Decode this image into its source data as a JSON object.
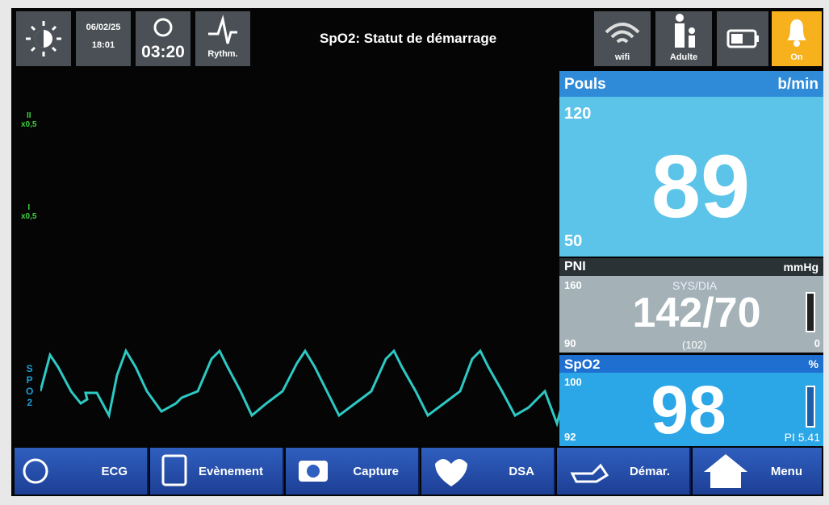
{
  "status_bar": {
    "date": "06/02/25",
    "time": "18:01",
    "timer": "03:20",
    "rhythm": "Rythm.",
    "message": "SpO2: Statut de démarrage",
    "wifi": "wifi",
    "patient": "Adulte",
    "alarm": "On"
  },
  "waveforms": {
    "lead_ii": "II",
    "lead_ii_gain": "x0,5",
    "lead_i": "I",
    "lead_i_gain": "x0,5",
    "spo2": [
      "S",
      "P",
      "O",
      "2"
    ]
  },
  "panels": {
    "pulse": {
      "title": "Pouls",
      "unit": "b/min",
      "upper": "120",
      "value": "89",
      "lower": "50"
    },
    "nibp": {
      "title": "PNI",
      "unit": "mmHg",
      "upper": "160",
      "mode": "SYS/DIA",
      "value": "142/70",
      "mean": "(102)",
      "lower": "90",
      "bar": "0"
    },
    "spo2": {
      "title": "SpO2",
      "unit": "%",
      "upper": "100",
      "value": "98",
      "lower": "92",
      "pi": "PI 5.41"
    }
  },
  "menu": [
    "ECG",
    "Evènement",
    "Capture",
    "DSA",
    "Démar.",
    "Menu"
  ]
}
